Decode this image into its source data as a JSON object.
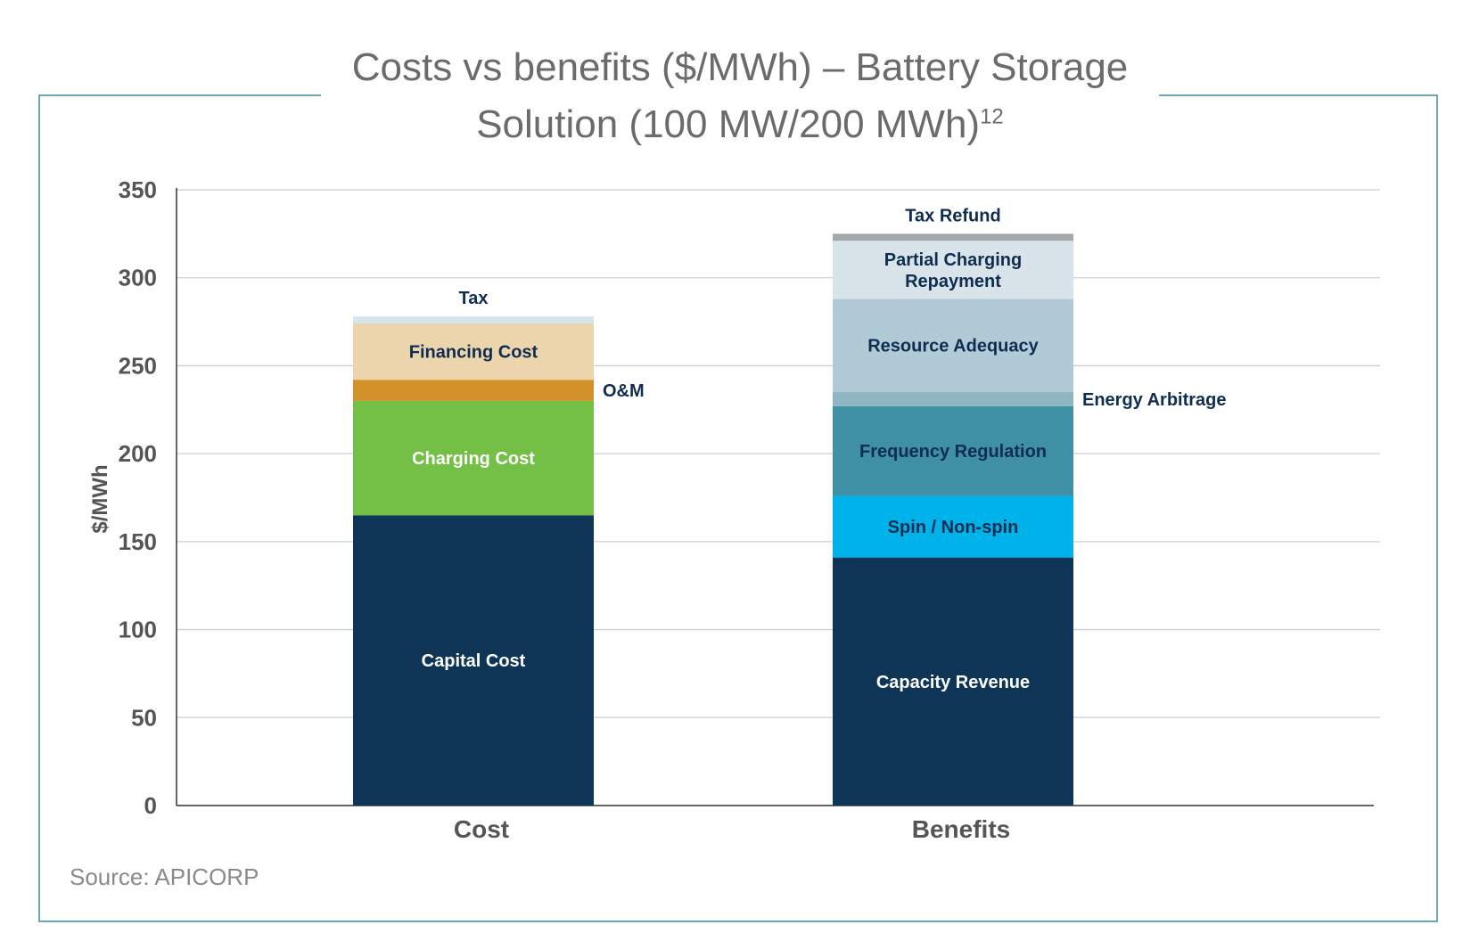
{
  "title": {
    "line1": "Costs vs benefits ($/MWh) – Battery Storage",
    "line2": "Solution (100 MW/200 MWh)",
    "superscript": "12"
  },
  "source": "Source: APICORP",
  "colors": {
    "frame": "#6aa8b3",
    "grid": "#cfcfcf",
    "axis": "#333333",
    "tick_label": "#555555",
    "dark_label": "#0f2d50",
    "light_label": "#ffffff"
  },
  "chart_data": {
    "type": "bar",
    "stacked": true,
    "categories": [
      "Cost",
      "Benefits"
    ],
    "ylabel": "$/MWh",
    "ylim": [
      0,
      350
    ],
    "yticks": [
      0,
      50,
      100,
      150,
      200,
      250,
      300,
      350
    ],
    "grid": true,
    "stacks": [
      {
        "category": "Cost",
        "segments": [
          {
            "label": "Capital Cost",
            "value": 165,
            "color": "#0f3556",
            "label_color": "#ffffff",
            "label_position": "inside"
          },
          {
            "label": "Charging Cost",
            "value": 65,
            "color": "#74bf45",
            "label_color": "#ffffff",
            "label_position": "inside"
          },
          {
            "label": "O&M",
            "value": 12,
            "color": "#d1922a",
            "label_color": "#0f2d50",
            "label_position": "right"
          },
          {
            "label": "Financing Cost",
            "value": 32,
            "color": "#ecd5ad",
            "label_color": "#0f2d50",
            "label_position": "inside"
          },
          {
            "label": "Tax",
            "value": 4,
            "color": "#d6e4ec",
            "label_color": "#0f2d50",
            "label_position": "above"
          }
        ]
      },
      {
        "category": "Benefits",
        "segments": [
          {
            "label": "Capacity Revenue",
            "value": 141,
            "color": "#0f3556",
            "label_color": "#ffffff",
            "label_position": "inside"
          },
          {
            "label": "Spin / Non-spin",
            "value": 35,
            "color": "#00b2ea",
            "label_color": "#0f2d50",
            "label_position": "inside"
          },
          {
            "label": "Frequency Regulation",
            "value": 51,
            "color": "#3f8fa5",
            "label_color": "#0f2d50",
            "label_position": "inside"
          },
          {
            "label": "Energy Arbitrage",
            "value": 8,
            "color": "#8fb4c2",
            "label_color": "#0f2d50",
            "label_position": "right"
          },
          {
            "label": "Resource Adequacy",
            "value": 53,
            "color": "#b1cbd6",
            "label_color": "#0f2d50",
            "label_position": "inside"
          },
          {
            "label": "Partial Charging Repayment",
            "value": 33,
            "color": "#d8e3ea",
            "label_color": "#0f2d50",
            "label_position": "inside",
            "lines": [
              "Partial Charging",
              "Repayment"
            ]
          },
          {
            "label": "Tax Refund",
            "value": 4,
            "color": "#a3a8ab",
            "label_color": "#0f2d50",
            "label_position": "above"
          }
        ]
      }
    ]
  }
}
